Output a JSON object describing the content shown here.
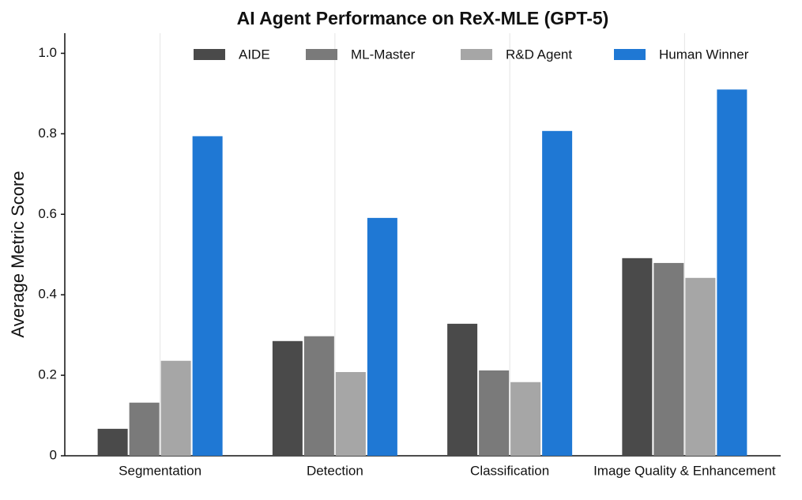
{
  "chart_data": {
    "type": "bar",
    "title": "AI Agent Performance on ReX-MLE (GPT-5)",
    "y_label": "Average Metric Score",
    "categories": [
      "Segmentation",
      "Detection",
      "Classification",
      "Image Quality & Enhancement"
    ],
    "series": [
      {
        "name": "AIDE",
        "color": "#4a4a4a",
        "values": [
          0.067,
          0.285,
          0.328,
          0.491
        ]
      },
      {
        "name": "ML-Master",
        "color": "#7a7a7a",
        "values": [
          0.132,
          0.297,
          0.212,
          0.479
        ]
      },
      {
        "name": "R&D Agent",
        "color": "#a6a6a6",
        "values": [
          0.236,
          0.208,
          0.183,
          0.442
        ]
      },
      {
        "name": "Human Winner",
        "color": "#1f78d4",
        "values": [
          0.794,
          0.591,
          0.807,
          0.91
        ]
      }
    ],
    "ylim": [
      0,
      1.05
    ],
    "yticks": [
      0,
      0.2,
      0.4,
      0.6,
      0.8,
      {
        "value": 1,
        "label": "1.0"
      }
    ],
    "grid": true,
    "legend": "top"
  }
}
